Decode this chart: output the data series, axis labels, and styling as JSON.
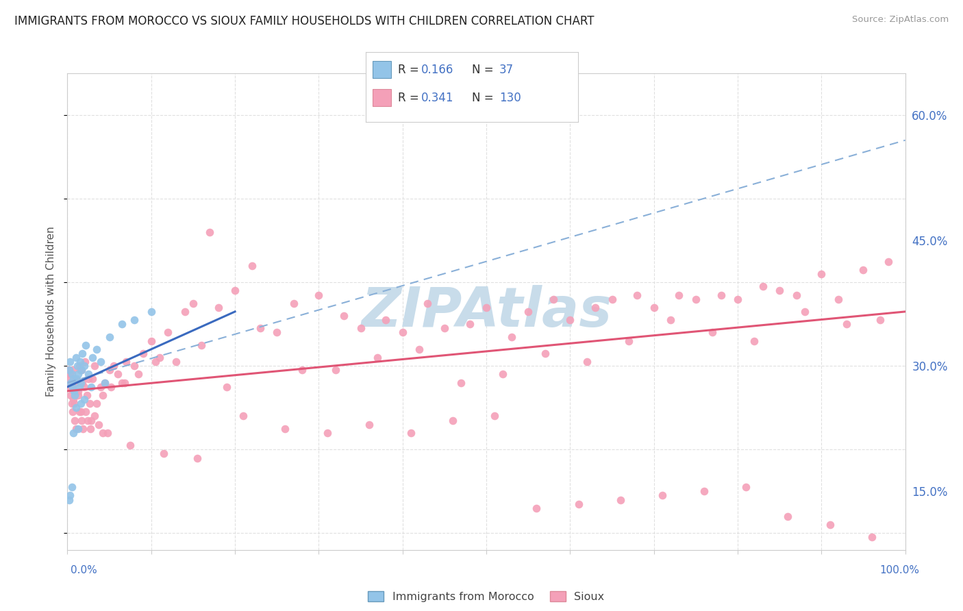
{
  "title": "IMMIGRANTS FROM MOROCCO VS SIOUX FAMILY HOUSEHOLDS WITH CHILDREN CORRELATION CHART",
  "source": "Source: ZipAtlas.com",
  "ylabel": "Family Households with Children",
  "yticks": [
    15.0,
    30.0,
    45.0,
    60.0
  ],
  "xlim": [
    0.0,
    100.0
  ],
  "ylim": [
    8.0,
    65.0
  ],
  "color_morocco": "#93c4e8",
  "color_sioux": "#f4a0b8",
  "color_trend_morocco": "#3a6abf",
  "color_trend_sioux": "#e05575",
  "color_dashed": "#8ab0d8",
  "background_color": "#ffffff",
  "grid_color": "#e0e0e0",
  "watermark_color": "#c8dcea",
  "morocco_x": [
    0.2,
    0.3,
    0.4,
    0.5,
    0.6,
    0.7,
    0.8,
    0.9,
    1.0,
    1.1,
    1.2,
    1.3,
    1.4,
    1.5,
    1.6,
    1.7,
    1.8,
    2.0,
    2.2,
    2.5,
    3.0,
    3.5,
    4.0,
    5.0,
    6.5,
    8.0,
    10.0,
    0.2,
    0.3,
    0.5,
    0.7,
    1.0,
    1.3,
    1.6,
    2.0,
    2.8,
    4.5
  ],
  "morocco_y": [
    29.5,
    30.5,
    28.0,
    29.0,
    27.5,
    28.5,
    27.0,
    26.5,
    31.0,
    28.5,
    30.0,
    29.0,
    27.5,
    30.5,
    28.0,
    29.5,
    31.5,
    30.0,
    32.5,
    29.0,
    31.0,
    32.0,
    30.5,
    33.5,
    35.0,
    35.5,
    36.5,
    14.0,
    14.5,
    15.5,
    22.0,
    25.0,
    22.5,
    25.5,
    26.0,
    27.5,
    28.0
  ],
  "sioux_x": [
    0.3,
    0.5,
    0.7,
    1.0,
    1.3,
    1.5,
    1.8,
    2.0,
    2.3,
    2.7,
    3.0,
    3.5,
    4.0,
    4.5,
    5.0,
    5.5,
    6.0,
    6.5,
    7.0,
    8.0,
    9.0,
    10.0,
    11.0,
    12.0,
    14.0,
    15.0,
    17.0,
    18.0,
    20.0,
    22.0,
    25.0,
    27.0,
    30.0,
    33.0,
    35.0,
    38.0,
    40.0,
    43.0,
    45.0,
    48.0,
    50.0,
    53.0,
    55.0,
    58.0,
    60.0,
    63.0,
    65.0,
    68.0,
    70.0,
    73.0,
    75.0,
    78.0,
    80.0,
    83.0,
    85.0,
    87.0,
    90.0,
    92.0,
    95.0,
    98.0,
    0.2,
    0.4,
    0.6,
    0.9,
    1.1,
    1.4,
    1.7,
    2.1,
    2.5,
    3.2,
    4.2,
    5.2,
    6.8,
    8.5,
    10.5,
    13.0,
    16.0,
    19.0,
    23.0,
    28.0,
    32.0,
    37.0,
    42.0,
    47.0,
    52.0,
    57.0,
    62.0,
    67.0,
    72.0,
    77.0,
    82.0,
    88.0,
    93.0,
    97.0,
    0.8,
    1.6,
    2.8,
    4.8,
    7.5,
    11.5,
    15.5,
    21.0,
    26.0,
    31.0,
    36.0,
    41.0,
    46.0,
    51.0,
    56.0,
    61.0,
    66.0,
    71.0,
    76.0,
    81.0,
    86.0,
    91.0,
    96.0,
    0.1,
    0.15,
    0.25,
    0.35,
    0.55,
    0.65,
    0.85,
    1.05,
    1.25,
    1.45,
    1.65,
    1.85,
    2.15,
    2.45,
    2.75,
    3.25,
    3.75,
    4.25
  ],
  "sioux_y": [
    29.0,
    27.5,
    26.0,
    28.5,
    27.0,
    29.5,
    28.0,
    27.5,
    26.5,
    25.5,
    28.5,
    25.5,
    27.5,
    28.0,
    29.5,
    30.0,
    29.0,
    28.0,
    30.5,
    30.0,
    31.5,
    33.0,
    31.0,
    34.0,
    36.5,
    37.5,
    46.0,
    37.0,
    39.0,
    42.0,
    34.0,
    37.5,
    38.5,
    36.0,
    34.5,
    35.5,
    34.0,
    37.5,
    34.5,
    35.0,
    37.0,
    33.5,
    36.5,
    38.0,
    35.5,
    37.0,
    38.0,
    38.5,
    37.0,
    38.5,
    38.0,
    38.5,
    38.0,
    39.5,
    39.0,
    38.5,
    41.0,
    38.0,
    41.5,
    42.5,
    29.0,
    28.0,
    29.5,
    27.0,
    28.0,
    30.0,
    29.5,
    30.5,
    28.5,
    30.0,
    26.5,
    27.5,
    28.0,
    29.0,
    30.5,
    30.5,
    32.5,
    27.5,
    34.5,
    29.5,
    29.5,
    31.0,
    32.0,
    28.0,
    29.0,
    31.5,
    30.5,
    33.0,
    35.5,
    34.0,
    33.0,
    36.5,
    35.0,
    35.5,
    25.5,
    24.5,
    23.5,
    22.0,
    20.5,
    19.5,
    19.0,
    24.0,
    22.5,
    22.0,
    23.0,
    22.0,
    23.5,
    24.0,
    13.0,
    13.5,
    14.0,
    14.5,
    15.0,
    15.5,
    12.0,
    11.0,
    9.5,
    28.5,
    29.5,
    27.5,
    26.5,
    25.5,
    24.5,
    23.5,
    22.5,
    26.5,
    24.5,
    23.5,
    22.5,
    24.5,
    23.5,
    22.5,
    24.0,
    23.0,
    22.0
  ],
  "trend_morocco_x0": 0,
  "trend_morocco_x1": 20,
  "trend_morocco_y0": 27.5,
  "trend_morocco_y1": 36.5,
  "trend_sioux_x0": 0,
  "trend_sioux_x1": 100,
  "trend_sioux_y0": 27.0,
  "trend_sioux_y1": 36.5,
  "dashed_x0": 0,
  "dashed_x1": 100,
  "dashed_y0": 28.0,
  "dashed_y1": 57.0
}
